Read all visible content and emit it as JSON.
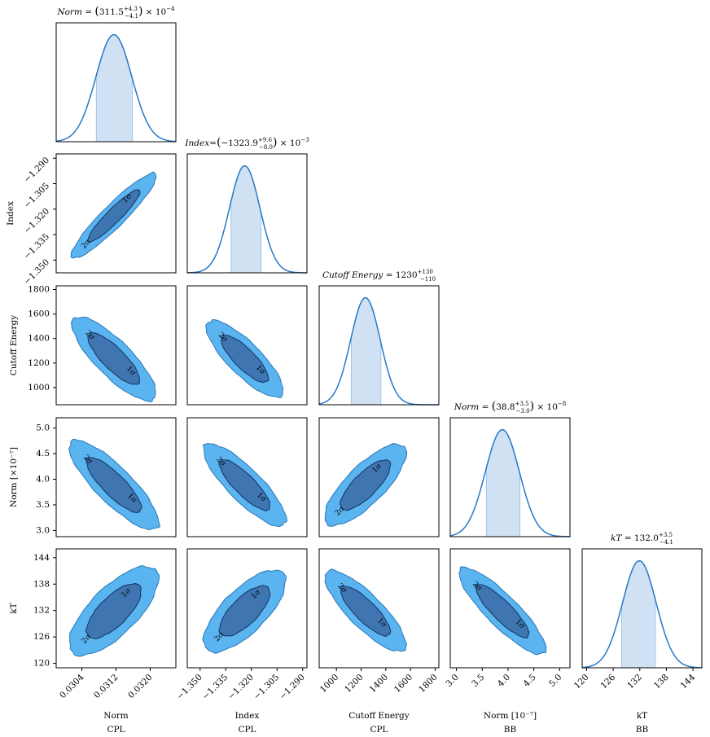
{
  "chart_data": {
    "type": "corner",
    "colors": {
      "outer": "#5ab4f0",
      "outer_edge": "#2a78b8",
      "inner": "#3f76b2",
      "inner_edge": "#1c3f6e",
      "marginal_line": "#2778c8",
      "marginal_fill": "#cfe1f3"
    },
    "contour_labels": {
      "one_sigma": "1σ",
      "two_sigma": "2σ"
    },
    "parameters": [
      {
        "id": "norm_cpl",
        "name": "Norm",
        "group": "CPL",
        "axis_label": "Norm",
        "group_label": "CPL",
        "y_label": "",
        "range": [
          0.0298,
          0.0326
        ],
        "ticks": [
          0.0304,
          0.0312,
          0.032
        ],
        "tick_labels": [
          "0.0304",
          "0.0312",
          "0.0320"
        ],
        "mean": 0.03115,
        "sigma": 0.00042,
        "ci": [
          0.03074,
          0.03158
        ],
        "title": {
          "prefix": "Norm",
          "eq": " = ",
          "open": "(",
          "value": "311.5",
          "sup": "+4.3",
          "sub": "−4.1",
          "close": ")",
          "suffix": " × 10",
          "exp": "−4"
        }
      },
      {
        "id": "index_cpl",
        "name": "Index",
        "group": "CPL",
        "axis_label": "Index",
        "group_label": "CPL",
        "y_label": "Index",
        "range": [
          -1.3575,
          -1.2875
        ],
        "ticks": [
          -1.35,
          -1.335,
          -1.32,
          -1.305,
          -1.29
        ],
        "tick_labels": [
          "−1.350",
          "−1.335",
          "−1.320",
          "−1.305",
          "−1.290"
        ],
        "mean": -1.3239,
        "sigma": 0.0089,
        "ci": [
          -1.3319,
          -1.3143
        ],
        "title": {
          "prefix": "Index",
          "eq": "=",
          "open": "(",
          "value": "−1323.9",
          "sup": "+9.6",
          "sub": "−8.0",
          "close": ")",
          "suffix": " × 10",
          "exp": "−3"
        }
      },
      {
        "id": "ecut_cpl",
        "name": "Cutoff Energy",
        "group": "CPL",
        "axis_label": "Cutoff Energy",
        "group_label": "CPL",
        "y_label": "Cutoff Energy",
        "range": [
          860,
          1830
        ],
        "ticks": [
          1000,
          1200,
          1400,
          1600,
          1800
        ],
        "tick_labels": [
          "1000",
          "1200",
          "1400",
          "1600",
          "1800"
        ],
        "mean": 1235,
        "sigma": 120,
        "ci": [
          1120,
          1360
        ],
        "title": {
          "prefix": "Cutoff Energy",
          "eq": " = ",
          "open": "",
          "value": "1230",
          "sup": "+130",
          "sub": "−110",
          "close": "",
          "suffix": "",
          "exp": ""
        }
      },
      {
        "id": "norm_bb",
        "name": "Norm",
        "group": "BB",
        "axis_label": "Norm [10⁻⁷]",
        "group_label": "BB",
        "y_label": "Norm [×10⁻⁷]",
        "range": [
          2.88,
          5.2
        ],
        "ticks": [
          3.0,
          3.5,
          4.0,
          4.5,
          5.0
        ],
        "tick_labels": [
          "3.0",
          "3.5",
          "4.0",
          "4.5",
          "5.0"
        ],
        "mean": 3.89,
        "sigma": 0.33,
        "ci": [
          3.58,
          4.23
        ],
        "title": {
          "prefix": "Norm",
          "eq": " = ",
          "open": "(",
          "value": "38.8",
          "sup": "+3.5",
          "sub": "−3.0",
          "close": ")",
          "suffix": " × 10",
          "exp": "−8"
        }
      },
      {
        "id": "kt_bb",
        "name": "kT",
        "group": "BB",
        "axis_label": "kT",
        "group_label": "BB",
        "y_label": "kT",
        "range": [
          119,
          146
        ],
        "ticks": [
          120,
          126,
          132,
          138,
          144
        ],
        "tick_labels": [
          "120",
          "126",
          "132",
          "138",
          "144"
        ],
        "mean": 131.9,
        "sigma": 3.8,
        "ci": [
          127.9,
          135.5
        ],
        "title": {
          "prefix": "kT",
          "eq": " = ",
          "open": "",
          "value": "132.0",
          "sup": "+3.5",
          "sub": "−4.1",
          "close": "",
          "suffix": "",
          "exp": ""
        }
      }
    ],
    "correlations": [
      {
        "row": 1,
        "col": 0,
        "rho": 0.93
      },
      {
        "row": 2,
        "col": 0,
        "rho": -0.82
      },
      {
        "row": 2,
        "col": 1,
        "rho": -0.82
      },
      {
        "row": 3,
        "col": 0,
        "rho": -0.84
      },
      {
        "row": 3,
        "col": 1,
        "rho": -0.84
      },
      {
        "row": 3,
        "col": 2,
        "rho": 0.78
      },
      {
        "row": 4,
        "col": 0,
        "rho": 0.72
      },
      {
        "row": 4,
        "col": 1,
        "rho": 0.72
      },
      {
        "row": 4,
        "col": 2,
        "rho": -0.83
      },
      {
        "row": 4,
        "col": 3,
        "rho": -0.87
      }
    ]
  }
}
